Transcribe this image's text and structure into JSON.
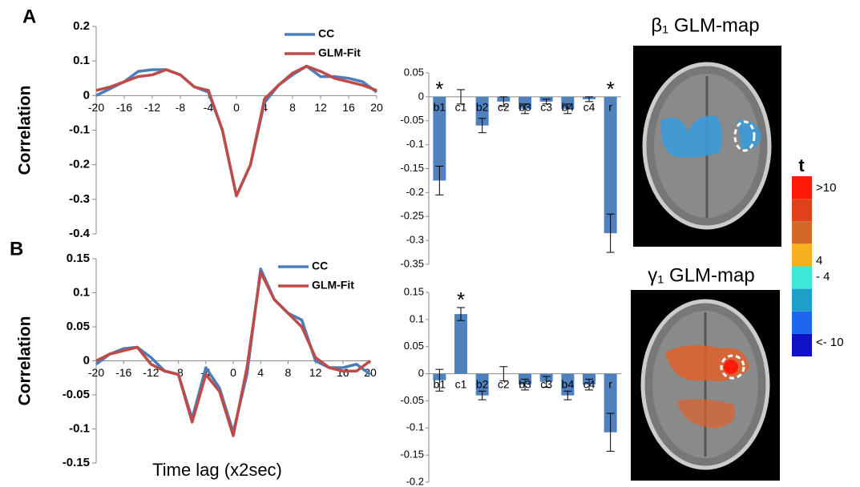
{
  "panel_labels": [
    "A",
    "B"
  ],
  "chart_data": [
    {
      "type": "line",
      "y_label": "Correlation",
      "x": [
        -20,
        -18,
        -16,
        -14,
        -12,
        -10,
        -8,
        -6,
        -4,
        -2,
        0,
        2,
        4,
        6,
        8,
        10,
        12,
        14,
        16,
        18,
        20
      ],
      "xlim": [
        -20,
        20
      ],
      "xticks": [
        -20,
        -16,
        -12,
        -8,
        -4,
        0,
        4,
        8,
        12,
        16,
        20
      ],
      "ylim": [
        -0.4,
        0.2
      ],
      "yticks": [
        -0.4,
        -0.3,
        -0.2,
        -0.1,
        0,
        0.1,
        0.2
      ],
      "legend": "upper right",
      "series": [
        {
          "name": "CC",
          "color": "#4a7ebb",
          "values": [
            0.0,
            0.02,
            0.04,
            0.07,
            0.075,
            0.075,
            0.06,
            0.025,
            0.01,
            -0.1,
            -0.29,
            -0.2,
            -0.02,
            0.03,
            0.06,
            0.085,
            0.055,
            0.055,
            0.05,
            0.04,
            0.01
          ]
        },
        {
          "name": "GLM-Fit",
          "color": "#be4b48",
          "values": [
            0.015,
            0.025,
            0.04,
            0.055,
            0.06,
            0.075,
            0.06,
            0.025,
            0.015,
            -0.1,
            -0.29,
            -0.2,
            -0.01,
            0.03,
            0.065,
            0.085,
            0.07,
            0.05,
            0.04,
            0.03,
            0.015
          ]
        }
      ]
    },
    {
      "type": "bar",
      "categories": [
        "b1",
        "c1",
        "b2",
        "c2",
        "b3",
        "c3",
        "b4",
        "c4",
        "r"
      ],
      "values": [
        -0.175,
        0,
        -0.06,
        -0.01,
        -0.025,
        -0.01,
        -0.025,
        -0.005,
        -0.285
      ],
      "errors": [
        0.03,
        0.015,
        0.015,
        0.01,
        0.01,
        0.005,
        0.01,
        0.005,
        0.04
      ],
      "color": "#4f81bd",
      "ylim": [
        -0.35,
        0.05
      ],
      "yticks": [
        -0.35,
        -0.3,
        -0.25,
        -0.2,
        -0.15,
        -0.1,
        -0.05,
        0,
        0.05
      ],
      "annotations": [
        {
          "label": "*",
          "category": "b1"
        },
        {
          "label": "*",
          "category": "r"
        }
      ]
    },
    {
      "type": "line",
      "y_label": "Correlation",
      "x_label": "Time lag (x2sec)",
      "x": [
        -20,
        -18,
        -16,
        -14,
        -12,
        -10,
        -8,
        -6,
        -4,
        -2,
        0,
        2,
        4,
        6,
        8,
        10,
        12,
        14,
        16,
        18,
        20
      ],
      "xlim": [
        -20,
        20
      ],
      "xticks": [
        -20,
        -16,
        -12,
        -8,
        -4,
        0,
        4,
        8,
        12,
        16,
        20
      ],
      "ylim": [
        -0.15,
        0.15
      ],
      "yticks": [
        -0.15,
        -0.1,
        -0.05,
        0,
        0.05,
        0.1,
        0.15
      ],
      "legend": "upper right",
      "series": [
        {
          "name": "CC",
          "color": "#4a7ebb",
          "values": [
            -0.005,
            0.01,
            0.018,
            0.02,
            0.005,
            -0.015,
            -0.02,
            -0.085,
            -0.01,
            -0.04,
            -0.105,
            -0.02,
            0.135,
            0.09,
            0.07,
            0.06,
            0.0,
            -0.01,
            -0.01,
            -0.005,
            -0.02
          ]
        },
        {
          "name": "GLM-Fit",
          "color": "#be4b48",
          "values": [
            0.0,
            0.01,
            0.015,
            0.02,
            -0.005,
            -0.015,
            -0.02,
            -0.09,
            -0.02,
            -0.045,
            -0.11,
            -0.01,
            0.13,
            0.09,
            0.07,
            0.05,
            0.005,
            -0.01,
            -0.015,
            -0.015,
            0.0
          ]
        }
      ]
    },
    {
      "type": "bar",
      "categories": [
        "b1",
        "c1",
        "b2",
        "c2",
        "b3",
        "c3",
        "b4",
        "c4",
        "r"
      ],
      "values": [
        -0.012,
        0.11,
        -0.04,
        0,
        -0.02,
        -0.015,
        -0.04,
        -0.02,
        -0.108
      ],
      "errors": [
        0.02,
        0.012,
        0.008,
        0.013,
        0.01,
        0.01,
        0.008,
        0.01,
        0.035
      ],
      "color": "#4f81bd",
      "ylim": [
        -0.2,
        0.15
      ],
      "yticks": [
        -0.2,
        -0.15,
        -0.1,
        -0.05,
        0,
        0.05,
        0.1,
        0.15
      ],
      "annotations": [
        {
          "label": "*",
          "category": "c1"
        }
      ]
    }
  ],
  "maps": [
    {
      "title": "β₁ GLM-map"
    },
    {
      "title": "γ₁ GLM-map"
    }
  ],
  "colorbar": {
    "title": "t",
    "colors": [
      "#ff1a0a",
      "#e0401c",
      "#d2692a",
      "#f5b21e",
      "#3ee8d8",
      "#1ca0c8",
      "#1e64f0",
      "#1010c8"
    ],
    "labels": [
      ">10",
      "4",
      "- 4",
      "<- 10"
    ]
  }
}
